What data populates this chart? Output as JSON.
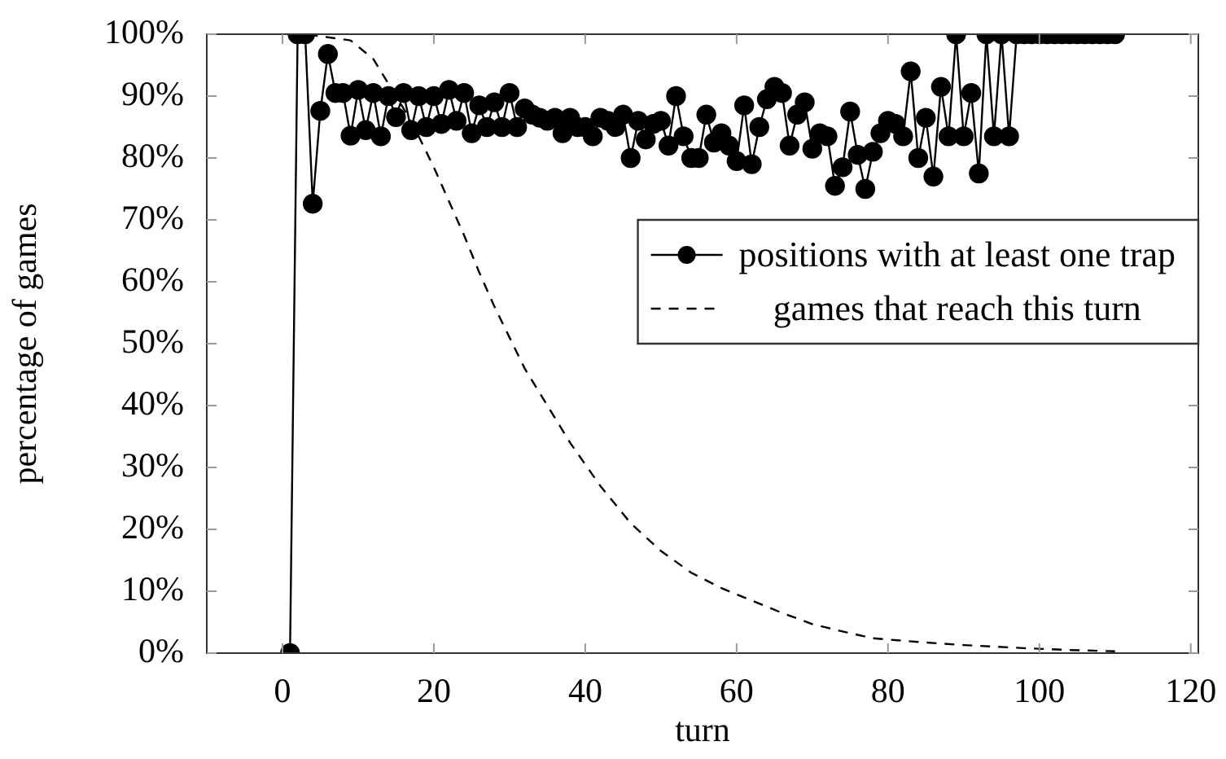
{
  "chart_data": {
    "type": "line",
    "xlabel": "turn",
    "ylabel": "percentage of games",
    "xlim": [
      -10,
      121
    ],
    "ylim": [
      0,
      100
    ],
    "xticks": [
      0,
      20,
      40,
      60,
      80,
      100,
      120
    ],
    "yticks": [
      {
        "value": 0,
        "label": "0%"
      },
      {
        "value": 10,
        "label": "10%"
      },
      {
        "value": 20,
        "label": "20%"
      },
      {
        "value": 30,
        "label": "30%"
      },
      {
        "value": 40,
        "label": "40%"
      },
      {
        "value": 50,
        "label": "50%"
      },
      {
        "value": 60,
        "label": "60%"
      },
      {
        "value": 70,
        "label": "70%"
      },
      {
        "value": 80,
        "label": "80%"
      },
      {
        "value": 90,
        "label": "90%"
      },
      {
        "value": 100,
        "label": "100%"
      }
    ],
    "grid": false,
    "legend": "right",
    "series": [
      {
        "name": "positions with at least one trap",
        "color": "#000000",
        "marker": "circle",
        "line_style": "solid",
        "x": [
          1,
          2,
          3,
          4,
          5,
          6,
          7,
          8,
          9,
          10,
          11,
          12,
          13,
          14,
          15,
          16,
          17,
          18,
          19,
          20,
          21,
          22,
          23,
          24,
          25,
          26,
          27,
          28,
          29,
          30,
          31,
          32,
          33,
          34,
          35,
          36,
          37,
          38,
          39,
          40,
          41,
          42,
          43,
          44,
          45,
          46,
          47,
          48,
          49,
          50,
          51,
          52,
          53,
          54,
          55,
          56,
          57,
          58,
          59,
          60,
          61,
          62,
          63,
          64,
          65,
          66,
          67,
          68,
          69,
          70,
          71,
          72,
          73,
          74,
          75,
          76,
          77,
          78,
          79,
          80,
          81,
          82,
          83,
          84,
          85,
          86,
          87,
          88,
          89,
          90,
          91,
          92,
          93,
          94,
          95,
          96,
          97,
          98,
          99,
          100,
          101,
          102,
          103,
          104,
          105,
          106,
          107,
          108,
          109,
          110
        ],
        "values": [
          0,
          100,
          100,
          72.6,
          87.6,
          96.8,
          90.5,
          90.5,
          83.6,
          91,
          84.5,
          90.5,
          83.5,
          90,
          86.6,
          90.5,
          84.5,
          90,
          85,
          90,
          85.5,
          91,
          86,
          90.5,
          84,
          88.5,
          85,
          89,
          85,
          90.5,
          85,
          88,
          87,
          86.5,
          86,
          86.5,
          84,
          86.5,
          85,
          85,
          83.5,
          86.5,
          86,
          85,
          87,
          80,
          86,
          83,
          85.5,
          86,
          82,
          90,
          83.5,
          80,
          80,
          87,
          82.5,
          84,
          82,
          79.5,
          88.5,
          79,
          85,
          89.5,
          91.5,
          90.5,
          82,
          87,
          89,
          81.5,
          84,
          83.5,
          75.5,
          78.5,
          87.5,
          80.5,
          75,
          81,
          84,
          86,
          85.5,
          83.5,
          94,
          80,
          86.5,
          77,
          91.5,
          83.5,
          100,
          83.5,
          90.5,
          77.5,
          100,
          83.5,
          100,
          83.5,
          100,
          100,
          100,
          100,
          100,
          100,
          100,
          100,
          100,
          100,
          100,
          100,
          100,
          100
        ]
      },
      {
        "name": "games that reach this turn",
        "color": "#000000",
        "marker": "none",
        "line_style": "dashed",
        "x": [
          1,
          3,
          6,
          9,
          12,
          14,
          16,
          18,
          20,
          22,
          24,
          26,
          28,
          30,
          32,
          35,
          38,
          42,
          46,
          50,
          54,
          58,
          62,
          66,
          70,
          74,
          78,
          84,
          90,
          98,
          104,
          110
        ],
        "values": [
          100,
          100,
          99.5,
          99,
          96,
          92,
          88,
          83.5,
          78.5,
          73,
          67.5,
          61.5,
          56,
          51,
          46,
          40,
          34,
          27,
          21,
          16.5,
          13,
          10.5,
          8.5,
          6.5,
          4.7,
          3.5,
          2.4,
          1.8,
          1.3,
          0.8,
          0.5,
          0.3
        ]
      }
    ]
  }
}
